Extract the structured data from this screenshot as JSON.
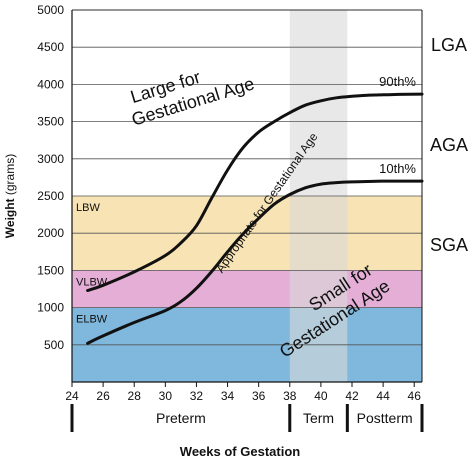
{
  "chart_data": {
    "type": "line",
    "xlabel": "Weeks of Gestation",
    "ylabel_bold": "Weight",
    "ylabel_rest": " (grams)",
    "xlim": [
      24,
      46.5
    ],
    "ylim": [
      0,
      5000
    ],
    "x_ticks": [
      24,
      26,
      28,
      30,
      32,
      34,
      36,
      38,
      40,
      42,
      44,
      46
    ],
    "y_ticks": [
      500,
      1000,
      1500,
      2000,
      2500,
      3000,
      3500,
      4000,
      4500,
      5000
    ],
    "grid": true,
    "bands": [
      {
        "label": "ELBW",
        "y0": 0,
        "y1": 1000,
        "color": "#7fb8dc"
      },
      {
        "label": "VLBW",
        "y0": 1000,
        "y1": 1500,
        "color": "#e4aed7"
      },
      {
        "label": "LBW",
        "y0": 1500,
        "y1": 2500,
        "color": "#f7e3b3"
      }
    ],
    "term_shade": {
      "x0": 38,
      "x1": 41.7,
      "color": "#d9d9d9"
    },
    "series": [
      {
        "name": "90th%",
        "x": [
          25,
          26,
          28,
          30,
          31,
          32,
          33,
          34,
          35,
          36,
          37,
          38,
          39,
          40,
          41,
          42,
          43,
          44,
          45,
          46.5
        ],
        "y": [
          1230,
          1300,
          1480,
          1700,
          1870,
          2100,
          2480,
          2850,
          3150,
          3360,
          3500,
          3620,
          3720,
          3780,
          3820,
          3840,
          3855,
          3860,
          3865,
          3870
        ]
      },
      {
        "name": "10th%",
        "x": [
          25,
          26,
          28,
          30,
          31,
          32,
          33,
          34,
          35,
          36,
          37,
          38,
          39,
          40,
          41,
          42,
          43,
          44,
          45,
          46.5
        ],
        "y": [
          520,
          620,
          800,
          960,
          1080,
          1260,
          1490,
          1750,
          1990,
          2200,
          2390,
          2520,
          2610,
          2660,
          2680,
          2690,
          2695,
          2700,
          2700,
          2700
        ]
      }
    ],
    "region_labels": [
      "LGA",
      "AGA",
      "SGA"
    ],
    "annotations": {
      "large": [
        "Large for",
        "Gestational Age"
      ],
      "appropriate": "Appropriate for Gestational Age",
      "small": [
        "Small for",
        "Gestational Age"
      ]
    },
    "periods": [
      {
        "label": "Preterm",
        "x0": 24,
        "x1": 38
      },
      {
        "label": "Term",
        "x0": 38,
        "x1": 41.7
      },
      {
        "label": "Postterm",
        "x0": 41.7,
        "x1": 46.5
      }
    ]
  }
}
